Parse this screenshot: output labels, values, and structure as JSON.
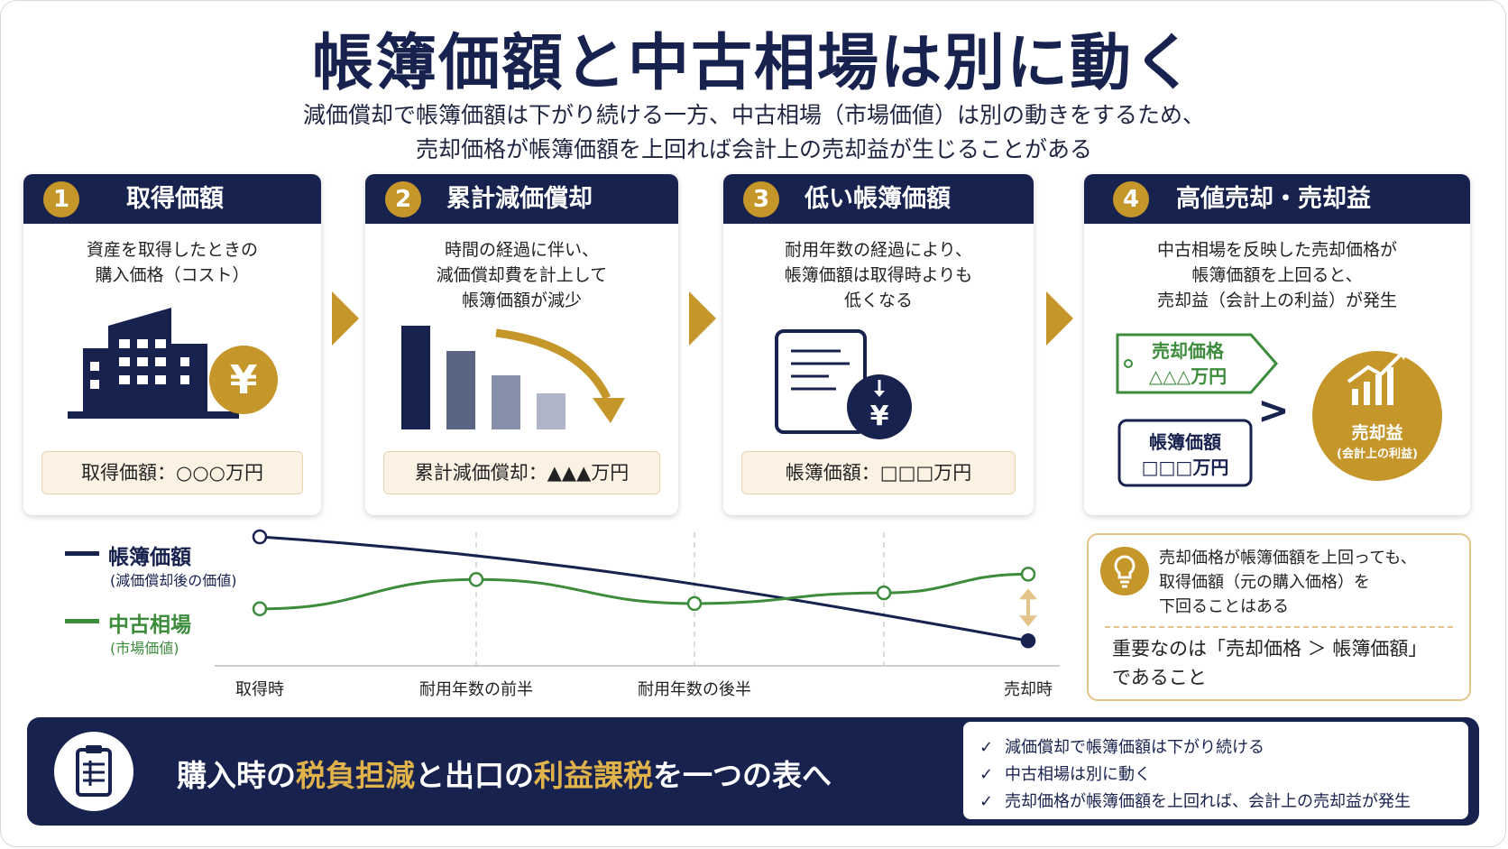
{
  "title": "帳簿価額と中古相場は別に動く",
  "subtitle_lines": [
    "減価償却で帳簿価額は下がり続ける一方、中古相場（市場価値）は別の動きをするため、",
    "売却価格が帳簿価額を上回れば会計上の売却益が生じることがある"
  ],
  "steps": [
    {
      "num": "1",
      "title": "取得価額",
      "desc": [
        "資産を取得したときの",
        "購入価格（コスト）"
      ],
      "value": "取得価額：○○○万円",
      "icon": "building-yen-icon"
    },
    {
      "num": "2",
      "title": "累計減価償却",
      "desc": [
        "時間の経過に伴い、",
        "減価償却費を計上して",
        "帳簿価額が減少"
      ],
      "value": "累計減価償却：▲▲▲万円",
      "icon": "declining-bars-icon"
    },
    {
      "num": "3",
      "title": "低い帳簿価額",
      "desc": [
        "耐用年数の経過により、",
        "帳簿価額は取得時よりも",
        "低くなる"
      ],
      "value": "帳簿価額：□□□万円",
      "icon": "document-yen-icon"
    },
    {
      "num": "4",
      "title": "高値売却・売却益",
      "desc": [
        "中古相場を反映した売却価格が",
        "帳簿価額を上回ると、",
        "売却益（会計上の利益）が発生"
      ],
      "icon": "growth-chart-icon"
    }
  ],
  "step4_visual": {
    "sale_label": "売却価格",
    "sale_value": "△△△万円",
    "book_label": "帳簿価額",
    "book_value": "□□□万円",
    "gt": ">",
    "gain_label": "売却益",
    "gain_sub": "(会計上の利益)"
  },
  "yen_symbol": "¥",
  "chart_data": {
    "type": "line",
    "categories": [
      "取得時",
      "耐用年数の前半",
      "耐用年数の後半",
      "売却時"
    ],
    "series": [
      {
        "name": "帳簿価額",
        "subname": "(減価償却後の価値)",
        "color": "#17224f",
        "points": [
          [
            0,
            100
          ],
          [
            3,
            61
          ]
        ]
      },
      {
        "name": "中古相場",
        "subname": "(市場価値)",
        "color": "#3c8c3c",
        "points": [
          [
            0,
            73
          ],
          [
            1,
            84
          ],
          [
            2,
            75
          ],
          [
            2.87,
            79
          ],
          [
            3,
            86
          ]
        ]
      }
    ],
    "xlim": [
      0,
      3
    ],
    "ylim": [
      55,
      100
    ],
    "grid": "dashed-vertical",
    "legend_position": "left"
  },
  "tip": {
    "text_lines": [
      "売却価格が帳簿価額を上回っても、",
      "取得価額（元の購入価格）を",
      "下回ることはある"
    ],
    "key_lines": [
      "重要なのは「売却価格 ＞ 帳簿価額」",
      "であること"
    ]
  },
  "banner": {
    "parts": [
      {
        "text": "購入時の",
        "highlight": false
      },
      {
        "text": "税負担減",
        "highlight": true
      },
      {
        "text": "と出口の",
        "highlight": false
      },
      {
        "text": "利益課税",
        "highlight": true
      },
      {
        "text": "を一つの表へ",
        "highlight": false
      }
    ],
    "checks": [
      "減価償却で帳簿価額は下がり続ける",
      "中古相場は別に動く",
      "売却価格が帳簿価額を上回れば、会計上の売却益が発生"
    ]
  },
  "colors": {
    "navy": "#17224f",
    "gold": "#c5962a",
    "green": "#3c8c3c",
    "cream": "#fbf2e4"
  }
}
